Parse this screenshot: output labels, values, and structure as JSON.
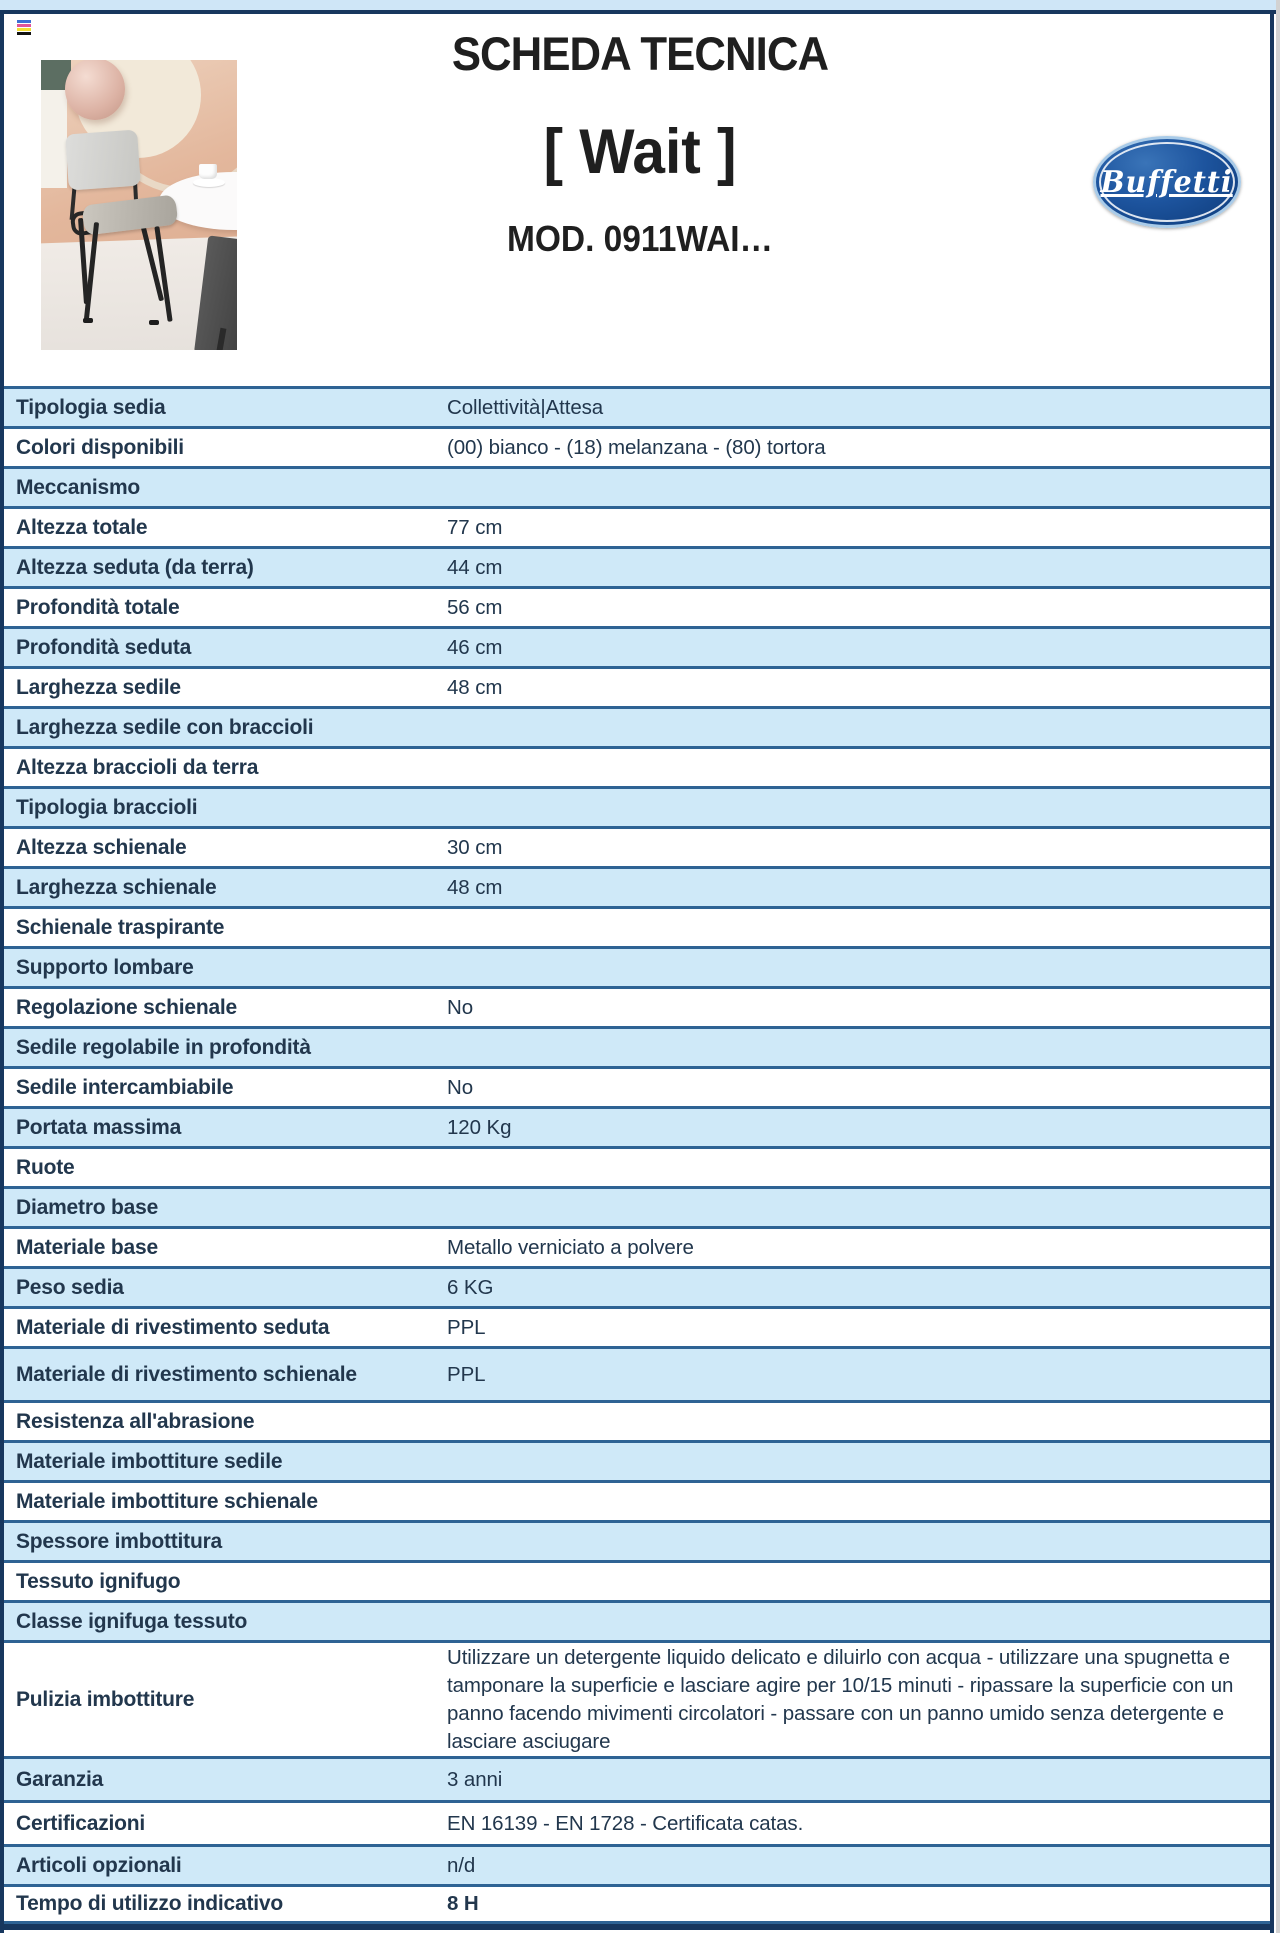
{
  "header": {
    "title": "SCHEDA TECNICA",
    "product_name": "[ Wait ]",
    "model": "MOD. 0911WAI…",
    "brand_text": "Buffetti"
  },
  "icons": {
    "print_color_bars": [
      "#3b6fd4",
      "#e0559a",
      "#f4de34",
      "#121212"
    ]
  },
  "colors": {
    "frame_navy": "#17375e",
    "row_border": "#2e6394",
    "row_blue": "#cfe9f8",
    "strip_blue": "#cfe6f7",
    "text_dark": "#22374d",
    "title_black": "#1f1f1f",
    "logo_blue": "#1d549e"
  },
  "table": {
    "rows": [
      {
        "label": "Tipologia sedia",
        "value": "Collettività|Attesa"
      },
      {
        "label": "Colori disponibili",
        "value": "(00) bianco - (18) melanzana - (80) tortora"
      },
      {
        "label": "Meccanismo",
        "value": ""
      },
      {
        "label": "Altezza totale",
        "value": "77 cm"
      },
      {
        "label": "Altezza seduta (da terra)",
        "value": "44 cm"
      },
      {
        "label": "Profondità totale",
        "value": "56 cm"
      },
      {
        "label": "Profondità seduta",
        "value": "46 cm"
      },
      {
        "label": "Larghezza sedile",
        "value": "48 cm"
      },
      {
        "label": "Larghezza sedile con braccioli",
        "value": ""
      },
      {
        "label": "Altezza braccioli da terra",
        "value": ""
      },
      {
        "label": "Tipologia braccioli",
        "value": ""
      },
      {
        "label": "Altezza schienale",
        "value": "30 cm"
      },
      {
        "label": "Larghezza schienale",
        "value": "48 cm"
      },
      {
        "label": "Schienale traspirante",
        "value": ""
      },
      {
        "label": "Supporto lombare",
        "value": ""
      },
      {
        "label": "Regolazione schienale",
        "value": "No"
      },
      {
        "label": "Sedile regolabile in profondità",
        "value": ""
      },
      {
        "label": "Sedile intercambiabile",
        "value": "No"
      },
      {
        "label": "Portata massima",
        "value": "120 Kg"
      },
      {
        "label": "Ruote",
        "value": ""
      },
      {
        "label": "Diametro base",
        "value": ""
      },
      {
        "label": "Materiale base",
        "value": "Metallo verniciato a polvere"
      },
      {
        "label": "Peso sedia",
        "value": "6 KG"
      },
      {
        "label": "Materiale di rivestimento seduta",
        "value": "PPL"
      },
      {
        "label": "Materiale di rivestimento schienale",
        "value": "PPL",
        "size": "tall"
      },
      {
        "label": "Resistenza all'abrasione",
        "value": ""
      },
      {
        "label": "Materiale imbottiture sedile",
        "value": ""
      },
      {
        "label": "Materiale imbottiture schienale",
        "value": ""
      },
      {
        "label": "Spessore imbottitura",
        "value": ""
      },
      {
        "label": "Tessuto ignifugo",
        "value": ""
      },
      {
        "label": "Classe ignifuga tessuto",
        "value": ""
      },
      {
        "label": "Pulizia imbottiture",
        "value": "Utilizzare un detergente liquido delicato e diluirlo con acqua - utilizzare una spugnetta e tamponare la superficie e lasciare agire per 10/15 minuti - ripassare la superficie con un panno facendo mivimenti circolatori - passare con un panno umido senza detergente e lasciare asciugare",
        "size": "xtall"
      },
      {
        "label": "Garanzia",
        "value": "3 anni",
        "size": "med"
      },
      {
        "label": "Certificazioni",
        "value": "EN 16139 - EN 1728 - Certificata catas.",
        "size": "med"
      },
      {
        "label": "Articoli opzionali",
        "value": "n/d"
      },
      {
        "label": "Tempo di utilizzo indicativo",
        "value": "8 H",
        "bold": true
      }
    ]
  }
}
